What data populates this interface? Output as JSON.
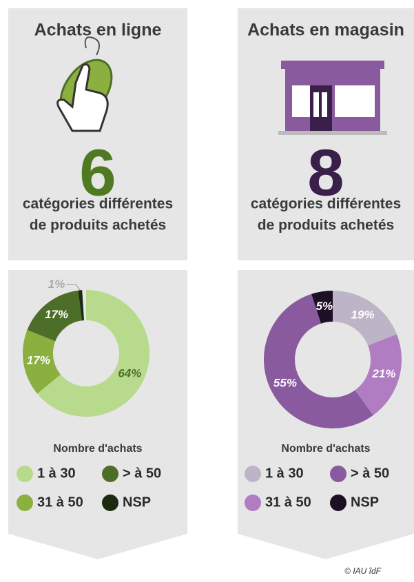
{
  "chart_data": [
    {
      "type": "pie",
      "title": "Achats en ligne",
      "highlight": "6",
      "highlight_color": "#4f7a22",
      "annotations": [
        "catégories différentes",
        "de produits achetés"
      ],
      "legend_title": "Nombre d'achats",
      "categories": [
        "1 à 30",
        "31 à 50",
        "> à 50",
        "NSP"
      ],
      "values": [
        64,
        17,
        17,
        1
      ],
      "value_labels": [
        "64%",
        "17%",
        "17%",
        "1%"
      ],
      "colors": [
        "#b8da8c",
        "#8bb040",
        "#4d6e28",
        "#1c2a10"
      ],
      "label_colors": [
        "#4d6e28",
        "#ffffff",
        "#ffffff",
        "#ffffff"
      ]
    },
    {
      "type": "pie",
      "title": "Achats en magasin",
      "highlight": "8",
      "highlight_color": "#3a1f4a",
      "annotations": [
        "catégories différentes",
        "de produits achetés"
      ],
      "legend_title": "Nombre d'achats",
      "categories": [
        "1 à 30",
        "31 à 50",
        "> à 50",
        "NSP"
      ],
      "values": [
        19,
        21,
        55,
        5
      ],
      "value_labels": [
        "19%",
        "21%",
        "55%",
        "5%"
      ],
      "colors": [
        "#bdb4c7",
        "#b07cc2",
        "#8a5a9f",
        "#1d0f24"
      ],
      "label_colors": [
        "#ffffff",
        "#ffffff",
        "#ffffff",
        "#ffffff"
      ]
    }
  ],
  "credit": "© IAU îdF"
}
